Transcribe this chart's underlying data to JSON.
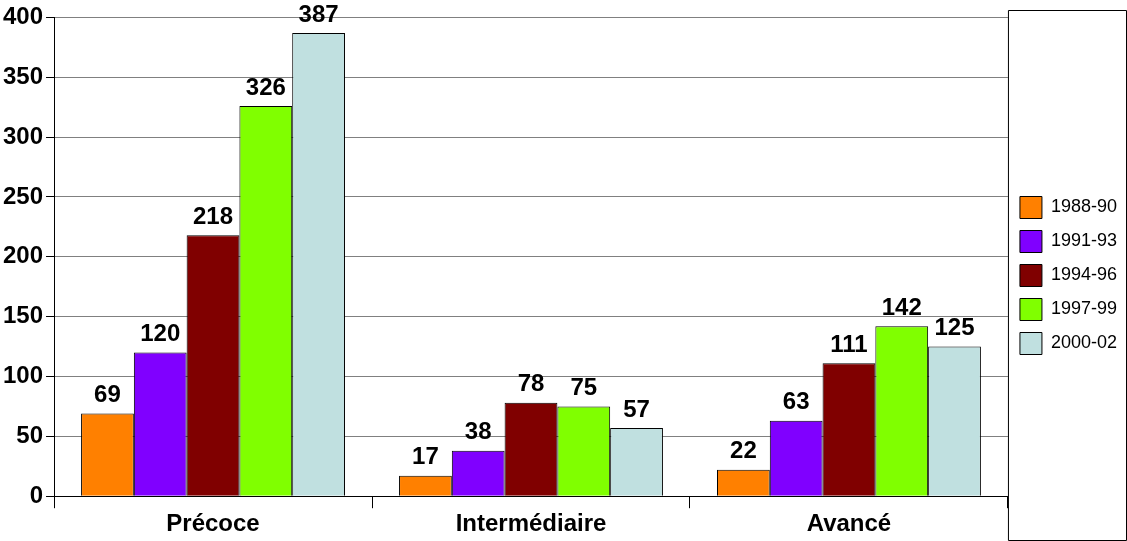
{
  "chart_data": {
    "type": "bar",
    "categories": [
      "Précoce",
      "Intermédiaire",
      "Avancé"
    ],
    "series": [
      {
        "name": "1988-90",
        "color": "#ff8000",
        "values": [
          69,
          17,
          22
        ]
      },
      {
        "name": "1991-93",
        "color": "#8000ff",
        "values": [
          120,
          38,
          63
        ]
      },
      {
        "name": "1994-96",
        "color": "#800000",
        "values": [
          218,
          78,
          111
        ]
      },
      {
        "name": "1997-99",
        "color": "#80ff00",
        "values": [
          326,
          75,
          142
        ]
      },
      {
        "name": "2000-02",
        "color": "#c0e0e0",
        "values": [
          387,
          57,
          125
        ]
      }
    ],
    "ylim": [
      0,
      400
    ],
    "yticks": [
      0,
      50,
      100,
      150,
      200,
      250,
      300,
      350,
      400
    ],
    "grid": "y",
    "legend": "right",
    "data_labels": true
  }
}
